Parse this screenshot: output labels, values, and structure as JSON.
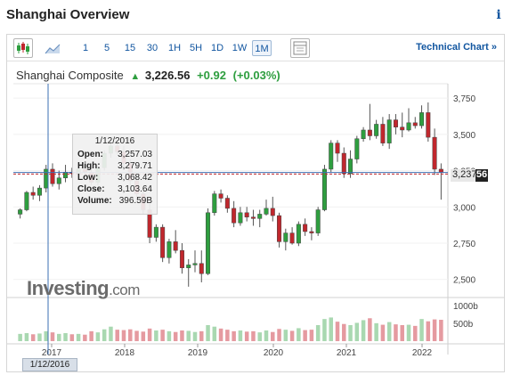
{
  "header": {
    "title": "Shanghai Overview",
    "info_icon": "i"
  },
  "toolbar": {
    "icons": [
      "candlestick-icon",
      "area-chart-icon",
      "settings-grid-icon"
    ],
    "ranges": [
      "1",
      "5",
      "15",
      "30",
      "1H",
      "5H",
      "1D",
      "1W",
      "1M"
    ],
    "active_range": "1M",
    "technical_link": "Technical Chart",
    "technical_arrow": "»"
  },
  "quote": {
    "instrument": "Shanghai Composite",
    "arrow": "▲",
    "last": "3,226.56",
    "change": "+0.92",
    "change_pct": "(+0.03%)"
  },
  "tooltip": {
    "date": "1/12/2016",
    "rows": [
      {
        "label": "Open:",
        "value": "3,257.03"
      },
      {
        "label": "High:",
        "value": "3,279.71"
      },
      {
        "label": "Low:",
        "value": "3,068.42"
      },
      {
        "label": "Close:",
        "value": "3,103.64"
      },
      {
        "label": "Volume:",
        "value": "396.59B"
      }
    ]
  },
  "price_badge": {
    "part_a": "3,237",
    "part_b": "56"
  },
  "logo": {
    "main": "Investing",
    "suffix": ".com"
  },
  "date_badge": "1/12/2016",
  "colors": {
    "up": "#2e9e3f",
    "down": "#c0272d",
    "link": "#1256a0",
    "up_vol": "#a9d8b1",
    "down_vol": "#e59aa0"
  },
  "chart_data": {
    "type": "candlestick",
    "price_axis": {
      "ticks": [
        "3,750",
        "3,500",
        "3,250",
        "3,000",
        "2,750",
        "2,500"
      ],
      "ylim": [
        2400,
        3800
      ]
    },
    "volume_axis": {
      "ticks": [
        "1000b",
        "500b"
      ]
    },
    "x_ticks": [
      "2017",
      "2018",
      "2019",
      "2020",
      "2021",
      "2022"
    ],
    "last_price": 3226.56,
    "crosshair_price": 3237.56,
    "candles": [
      [
        2950,
        2990,
        2920,
        2980,
        190
      ],
      [
        2980,
        3110,
        2970,
        3100,
        210
      ],
      [
        3100,
        3140,
        3050,
        3080,
        180
      ],
      [
        3080,
        3150,
        3040,
        3130,
        200
      ],
      [
        3130,
        3290,
        3100,
        3260,
        260
      ],
      [
        3260,
        3300,
        3140,
        3160,
        230
      ],
      [
        3160,
        3250,
        3120,
        3200,
        190
      ],
      [
        3200,
        3290,
        3170,
        3240,
        210
      ],
      [
        3240,
        3270,
        3200,
        3230,
        180
      ],
      [
        3230,
        3300,
        3200,
        3260,
        190
      ],
      [
        3260,
        3290,
        3220,
        3240,
        170
      ],
      [
        3240,
        3280,
        3150,
        3170,
        260
      ],
      [
        3170,
        3300,
        3150,
        3270,
        230
      ],
      [
        3270,
        3390,
        3250,
        3370,
        310
      ],
      [
        3370,
        3460,
        3340,
        3420,
        380
      ],
      [
        3420,
        3440,
        3360,
        3380,
        300
      ],
      [
        3380,
        3420,
        3270,
        3300,
        290
      ],
      [
        3300,
        3330,
        3150,
        3180,
        310
      ],
      [
        3180,
        3210,
        3050,
        3090,
        270
      ],
      [
        3090,
        3120,
        2950,
        2980,
        250
      ],
      [
        2980,
        3020,
        2750,
        2790,
        330
      ],
      [
        2790,
        2880,
        2760,
        2860,
        280
      ],
      [
        2860,
        2880,
        2620,
        2650,
        300
      ],
      [
        2650,
        2780,
        2610,
        2760,
        260
      ],
      [
        2760,
        2840,
        2680,
        2700,
        240
      ],
      [
        2700,
        2750,
        2540,
        2580,
        280
      ],
      [
        2580,
        2640,
        2450,
        2600,
        270
      ],
      [
        2600,
        2700,
        2550,
        2610,
        240
      ],
      [
        2610,
        2700,
        2480,
        2540,
        260
      ],
      [
        2540,
        2990,
        2530,
        2960,
        420
      ],
      [
        2960,
        3110,
        2940,
        3090,
        380
      ],
      [
        3090,
        3120,
        3030,
        3060,
        330
      ],
      [
        3060,
        3080,
        2960,
        2990,
        300
      ],
      [
        2990,
        3040,
        2860,
        2890,
        260
      ],
      [
        2890,
        3000,
        2870,
        2960,
        280
      ],
      [
        2960,
        3000,
        2900,
        2930,
        250
      ],
      [
        2930,
        2980,
        2870,
        2920,
        260
      ],
      [
        2920,
        2980,
        2860,
        2950,
        230
      ],
      [
        2950,
        3050,
        2940,
        2990,
        280
      ],
      [
        2990,
        3070,
        2900,
        2940,
        240
      ],
      [
        2940,
        2960,
        2720,
        2760,
        320
      ],
      [
        2760,
        2850,
        2700,
        2820,
        300
      ],
      [
        2820,
        2860,
        2740,
        2750,
        270
      ],
      [
        2750,
        2900,
        2730,
        2880,
        340
      ],
      [
        2880,
        2920,
        2800,
        2830,
        290
      ],
      [
        2830,
        2860,
        2770,
        2820,
        300
      ],
      [
        2820,
        3000,
        2800,
        2980,
        420
      ],
      [
        2980,
        3290,
        2970,
        3260,
        580
      ],
      [
        3260,
        3460,
        3240,
        3440,
        620
      ],
      [
        3440,
        3460,
        3310,
        3370,
        510
      ],
      [
        3370,
        3410,
        3200,
        3230,
        450
      ],
      [
        3230,
        3390,
        3200,
        3330,
        420
      ],
      [
        3330,
        3490,
        3300,
        3470,
        480
      ],
      [
        3470,
        3550,
        3450,
        3530,
        550
      ],
      [
        3530,
        3710,
        3460,
        3490,
        600
      ],
      [
        3490,
        3600,
        3470,
        3570,
        470
      ],
      [
        3570,
        3620,
        3420,
        3440,
        430
      ],
      [
        3440,
        3640,
        3400,
        3600,
        500
      ],
      [
        3600,
        3640,
        3500,
        3550,
        440
      ],
      [
        3550,
        3650,
        3480,
        3530,
        420
      ],
      [
        3530,
        3680,
        3520,
        3580,
        430
      ],
      [
        3580,
        3620,
        3540,
        3560,
        400
      ],
      [
        3560,
        3700,
        3540,
        3650,
        580
      ],
      [
        3650,
        3720,
        3450,
        3480,
        520
      ],
      [
        3480,
        3540,
        3220,
        3260,
        570
      ],
      [
        3260,
        3300,
        3050,
        3237,
        560
      ]
    ]
  }
}
